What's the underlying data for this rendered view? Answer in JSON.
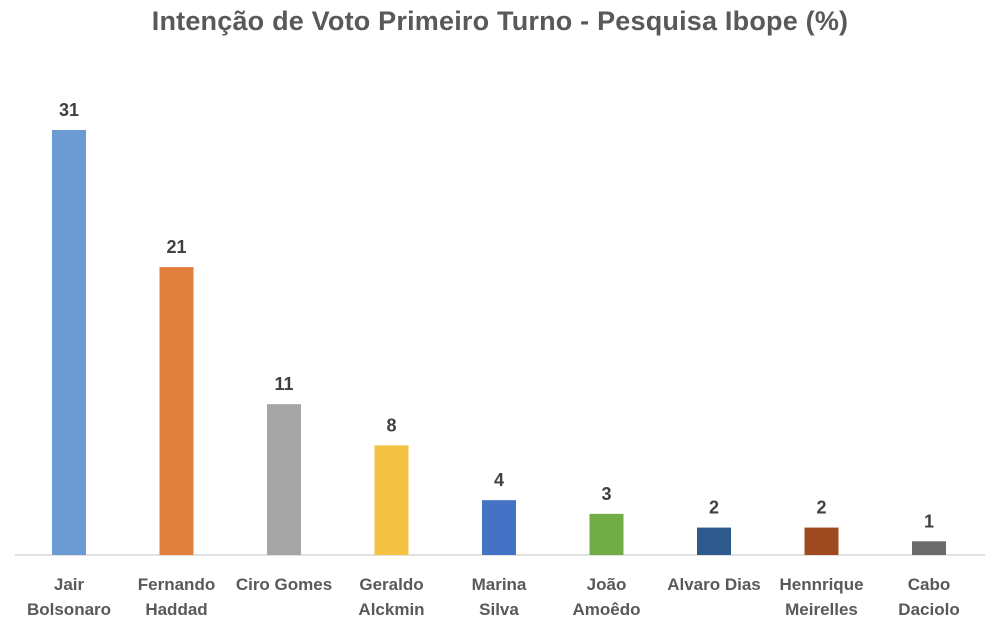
{
  "chart_data": {
    "type": "bar",
    "title": "Intenção de Voto Primeiro Turno - Pesquisa Ibope  (%)",
    "categories": [
      [
        "Jair",
        "Bolsonaro"
      ],
      [
        "Fernando",
        "Haddad"
      ],
      [
        "Ciro Gomes"
      ],
      [
        "Geraldo",
        "Alckmin"
      ],
      [
        "Marina",
        "Silva"
      ],
      [
        "João",
        "Amoêdo"
      ],
      [
        "Alvaro Dias"
      ],
      [
        "Hennrique",
        "Meirelles"
      ],
      [
        "Cabo",
        "Daciolo"
      ]
    ],
    "values": [
      31,
      21,
      11,
      8,
      4,
      3,
      2,
      2,
      1
    ],
    "colors": [
      "#6B9BD2",
      "#E07F3E",
      "#A5A5A5",
      "#F4C242",
      "#4472C4",
      "#70AD47",
      "#2E5A8E",
      "#9E4A1E",
      "#6B6B6B"
    ],
    "xlabel": "",
    "ylabel": "",
    "ylim": [
      0,
      31
    ],
    "grid": false,
    "legend": "none"
  }
}
